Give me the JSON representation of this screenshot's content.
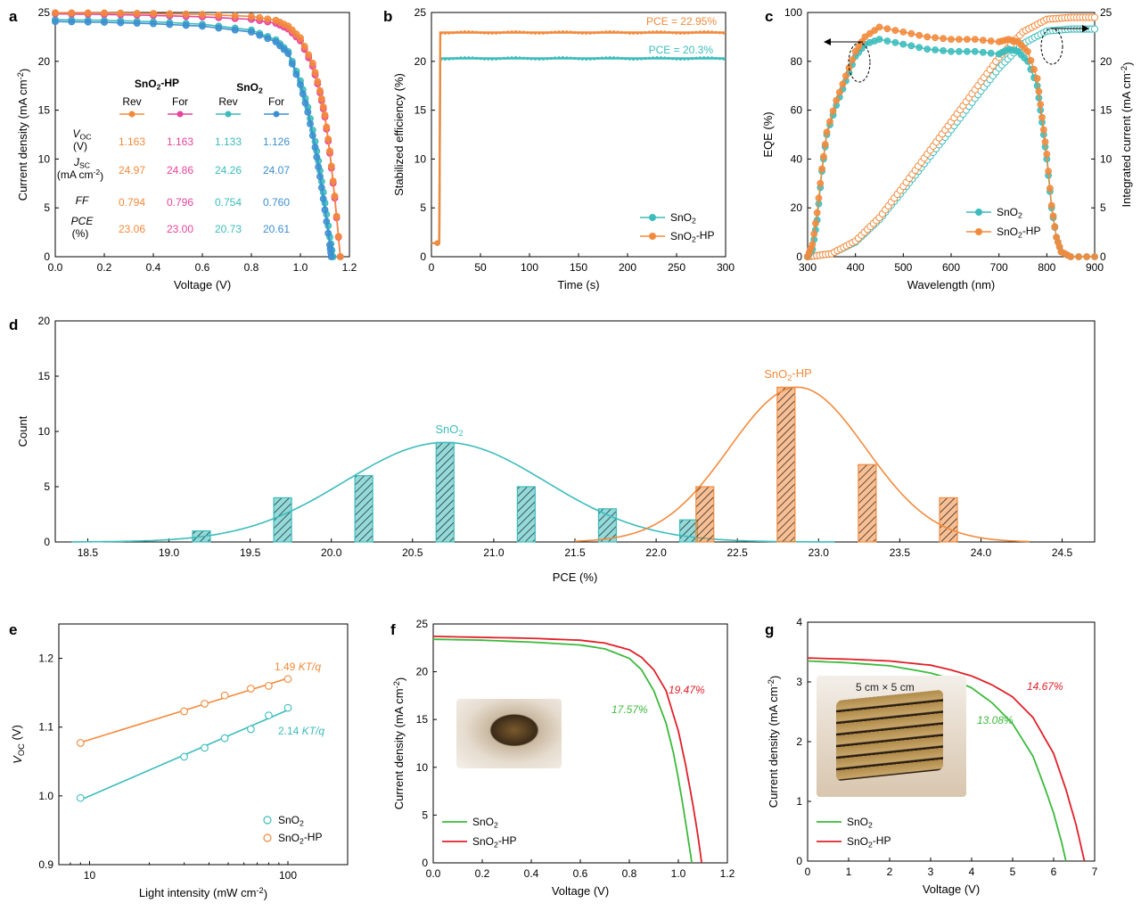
{
  "colors": {
    "sno2": "#3cbcbc",
    "hp": "#f28a3c",
    "hp_for": "#e6459a",
    "sno2_for": "#3d8fd1",
    "green": "#3cba3c",
    "red": "#e0202a"
  },
  "panel_labels": [
    "a",
    "b",
    "c",
    "d",
    "e",
    "f",
    "g"
  ],
  "inset_table": {
    "groups": [
      "SnO2-HP",
      "SnO2"
    ],
    "scan_labels": [
      "Rev",
      "For",
      "Rev",
      "For"
    ],
    "row_labels": [
      {
        "name": "VOC",
        "unit": "(V)"
      },
      {
        "name": "JSC",
        "unit": "(mA cm-2)"
      },
      {
        "name": "FF",
        "unit": ""
      },
      {
        "name": "PCE",
        "unit": "(%)"
      }
    ],
    "rows": [
      [
        "1.163",
        "1.163",
        "1.133",
        "1.126"
      ],
      [
        "24.97",
        "24.86",
        "24.26",
        "24.07"
      ],
      [
        "0.794",
        "0.796",
        "0.754",
        "0.760"
      ],
      [
        "23.06",
        "23.00",
        "20.73",
        "20.61"
      ]
    ]
  },
  "photo_labels": {
    "g": "5 cm × 5 cm"
  },
  "chart_data": [
    {
      "panel": "a",
      "type": "line",
      "xlabel": "Voltage (V)",
      "ylabel": "Current density (mA cm-2)",
      "xlim": [
        0,
        1.2
      ],
      "ylim": [
        0,
        25
      ],
      "xticks": [
        "0.0",
        "0.2",
        "0.4",
        "0.6",
        "0.8",
        "1.0",
        "1.2"
      ],
      "yticks": [
        "0",
        "5",
        "10",
        "15",
        "20",
        "25"
      ],
      "series": [
        {
          "name": "SnO2-HP Rev",
          "x": [
            0,
            0.2,
            0.4,
            0.6,
            0.8,
            0.9,
            0.95,
            1.0,
            1.05,
            1.08,
            1.1,
            1.12,
            1.14,
            1.163
          ],
          "y": [
            24.97,
            24.95,
            24.9,
            24.8,
            24.6,
            24.2,
            23.6,
            22.4,
            19.8,
            17.0,
            14.5,
            10.8,
            6.2,
            0
          ]
        },
        {
          "name": "SnO2-HP For",
          "x": [
            0,
            0.2,
            0.4,
            0.6,
            0.8,
            0.9,
            0.95,
            1.0,
            1.05,
            1.08,
            1.1,
            1.12,
            1.14,
            1.163
          ],
          "y": [
            24.86,
            24.8,
            24.7,
            24.55,
            24.3,
            23.9,
            23.3,
            22.1,
            19.5,
            16.8,
            14.3,
            10.6,
            6.0,
            0
          ]
        },
        {
          "name": "SnO2 Rev",
          "x": [
            0,
            0.2,
            0.4,
            0.6,
            0.8,
            0.9,
            0.95,
            1.0,
            1.03,
            1.06,
            1.08,
            1.1,
            1.12,
            1.133
          ],
          "y": [
            24.26,
            24.2,
            24.05,
            23.8,
            23.2,
            22.2,
            21.0,
            18.0,
            15.3,
            11.8,
            8.8,
            5.5,
            2.0,
            0
          ]
        },
        {
          "name": "SnO2 For",
          "x": [
            0,
            0.2,
            0.4,
            0.6,
            0.8,
            0.9,
            0.95,
            1.0,
            1.03,
            1.06,
            1.08,
            1.1,
            1.12,
            1.126
          ],
          "y": [
            24.07,
            24.0,
            23.85,
            23.6,
            23.0,
            22.0,
            20.8,
            17.6,
            14.8,
            11.2,
            8.2,
            4.8,
            1.2,
            0
          ]
        }
      ]
    },
    {
      "panel": "b",
      "type": "line",
      "xlabel": "Time (s)",
      "ylabel": "Stabilized efficiency (%)",
      "xlim": [
        0,
        300
      ],
      "ylim": [
        0,
        25
      ],
      "xticks": [
        "0",
        "50",
        "100",
        "150",
        "200",
        "250",
        "300"
      ],
      "yticks": [
        "0",
        "5",
        "10",
        "15",
        "20",
        "25"
      ],
      "annotations": [
        "PCE = 22.95%",
        "PCE = 20.3%"
      ],
      "legend": [
        "SnO2",
        "SnO2-HP"
      ],
      "series": [
        {
          "name": "SnO2",
          "x": [
            0,
            8,
            9,
            300
          ],
          "y": [
            1.4,
            1.4,
            20.3,
            20.3
          ]
        },
        {
          "name": "SnO2-HP",
          "x": [
            0,
            8,
            9,
            300
          ],
          "y": [
            1.4,
            1.4,
            22.95,
            22.95
          ]
        }
      ]
    },
    {
      "panel": "c",
      "type": "line",
      "xlabel": "Wavelength (nm)",
      "ylabel": "EQE (%)",
      "y2label": "Integrated current (mA cm-2)",
      "xlim": [
        300,
        900
      ],
      "ylim": [
        0,
        100
      ],
      "y2lim": [
        0,
        25
      ],
      "xticks": [
        "300",
        "400",
        "500",
        "600",
        "700",
        "800",
        "900"
      ],
      "yticks": [
        "0",
        "20",
        "40",
        "60",
        "80",
        "100"
      ],
      "y2ticks": [
        "0",
        "5",
        "10",
        "15",
        "20",
        "25"
      ],
      "legend": [
        "SnO2",
        "SnO2-HP"
      ],
      "series": [
        {
          "name": "SnO2",
          "axis": "EQE",
          "x": [
            300,
            310,
            320,
            330,
            340,
            360,
            380,
            400,
            420,
            450,
            500,
            550,
            600,
            650,
            700,
            720,
            740,
            760,
            780,
            790,
            800,
            810,
            820,
            830,
            850,
            900
          ],
          "y": [
            0,
            3,
            15,
            35,
            50,
            62,
            72,
            82,
            87,
            89,
            87,
            85,
            84,
            84,
            83,
            85,
            84,
            80,
            70,
            55,
            40,
            20,
            8,
            2,
            0,
            0
          ]
        },
        {
          "name": "SnO2-HP",
          "axis": "EQE",
          "x": [
            300,
            310,
            320,
            330,
            340,
            360,
            380,
            400,
            420,
            450,
            500,
            550,
            600,
            650,
            700,
            720,
            740,
            760,
            780,
            790,
            800,
            810,
            820,
            830,
            850,
            900
          ],
          "y": [
            0,
            5,
            18,
            36,
            51,
            64,
            74,
            84,
            90,
            94,
            92,
            90,
            89,
            89,
            88,
            89,
            88,
            84,
            73,
            57,
            42,
            21,
            8,
            2,
            0,
            0
          ]
        },
        {
          "name": "SnO2",
          "axis": "integrated",
          "x": [
            300,
            350,
            400,
            450,
            500,
            550,
            600,
            650,
            700,
            750,
            800,
            850,
            900
          ],
          "y": [
            0,
            0.3,
            1.5,
            3.8,
            6.8,
            9.9,
            13.0,
            16.2,
            19.3,
            21.8,
            23.1,
            23.3,
            23.3
          ]
        },
        {
          "name": "SnO2-HP",
          "axis": "integrated",
          "x": [
            300,
            350,
            400,
            450,
            500,
            550,
            600,
            650,
            700,
            750,
            800,
            850,
            900
          ],
          "y": [
            0,
            0.3,
            1.6,
            4.0,
            7.2,
            10.5,
            13.8,
            17.1,
            20.4,
            23.0,
            24.3,
            24.5,
            24.5
          ]
        }
      ]
    },
    {
      "panel": "d",
      "type": "bar",
      "xlabel": "PCE (%)",
      "ylabel": "Count",
      "xlim": [
        18.3,
        24.7
      ],
      "ylim": [
        0,
        20
      ],
      "xticks": [
        "18.5",
        "19.0",
        "19.5",
        "20.0",
        "20.5",
        "21.0",
        "21.5",
        "22.0",
        "22.5",
        "23.0",
        "23.5",
        "24.0",
        "24.5"
      ],
      "yticks": [
        "0",
        "5",
        "10",
        "15",
        "20"
      ],
      "series": [
        {
          "name": "SnO2",
          "x": [
            19.2,
            19.7,
            20.2,
            20.7,
            21.2,
            21.7,
            22.2
          ],
          "values": [
            1,
            4,
            6,
            9,
            5,
            3,
            2
          ],
          "fit": {
            "mean": 20.7,
            "sigma": 0.62,
            "peak": 9,
            "range": [
              18.4,
              23.1
            ]
          }
        },
        {
          "name": "SnO2-HP",
          "x": [
            22.3,
            22.8,
            23.3,
            23.8
          ],
          "values": [
            5,
            14,
            7,
            4
          ],
          "fit": {
            "mean": 22.87,
            "sigma": 0.42,
            "peak": 14,
            "range": [
              21.5,
              24.3
            ]
          }
        }
      ]
    },
    {
      "panel": "e",
      "type": "scatter",
      "xlabel": "Light intensity (mW cm-2)",
      "ylabel": "VOC (V)",
      "xscale": "log",
      "xlim": [
        7,
        200
      ],
      "ylim": [
        0.9,
        1.25
      ],
      "xticks": [
        "10",
        "100"
      ],
      "yticks": [
        "0.9",
        "1.0",
        "1.1",
        "1.2"
      ],
      "annotations": [
        "1.49 KT/q",
        "2.14 KT/q"
      ],
      "legend": [
        "SnO2",
        "SnO2-HP"
      ],
      "series": [
        {
          "name": "SnO2",
          "x": [
            9,
            30,
            38,
            48,
            65,
            80,
            100
          ],
          "y": [
            0.997,
            1.057,
            1.07,
            1.084,
            1.097,
            1.117,
            1.128
          ]
        },
        {
          "name": "SnO2-HP",
          "x": [
            9,
            30,
            38,
            48,
            65,
            80,
            100
          ],
          "y": [
            1.077,
            1.123,
            1.134,
            1.146,
            1.156,
            1.16,
            1.17
          ]
        }
      ]
    },
    {
      "panel": "f",
      "type": "line",
      "xlabel": "Voltage (V)",
      "ylabel": "Current density (mA cm-2)",
      "xlim": [
        0,
        1.2
      ],
      "ylim": [
        0,
        25
      ],
      "xticks": [
        "0.0",
        "0.2",
        "0.4",
        "0.6",
        "0.8",
        "1.0",
        "1.2"
      ],
      "yticks": [
        "0",
        "5",
        "10",
        "15",
        "20",
        "25"
      ],
      "annotations": [
        "17.57%",
        "19.47%"
      ],
      "legend": [
        "SnO2",
        "SnO2-HP"
      ],
      "series": [
        {
          "name": "SnO2",
          "x": [
            0,
            0.2,
            0.4,
            0.6,
            0.7,
            0.8,
            0.85,
            0.9,
            0.95,
            0.98,
            1.0,
            1.02,
            1.04,
            1.055
          ],
          "y": [
            23.4,
            23.3,
            23.1,
            22.8,
            22.4,
            21.4,
            20.2,
            18.0,
            14.6,
            11.5,
            8.8,
            5.8,
            2.5,
            0
          ]
        },
        {
          "name": "SnO2-HP",
          "x": [
            0,
            0.2,
            0.4,
            0.6,
            0.7,
            0.8,
            0.85,
            0.9,
            0.95,
            1.0,
            1.03,
            1.06,
            1.08,
            1.095
          ],
          "y": [
            23.7,
            23.6,
            23.5,
            23.3,
            23.0,
            22.3,
            21.5,
            20.2,
            18.0,
            13.8,
            10.2,
            6.0,
            2.8,
            0
          ]
        }
      ]
    },
    {
      "panel": "g",
      "type": "line",
      "xlabel": "Voltage (V)",
      "ylabel": "Current density (mA cm-2)",
      "xlim": [
        0,
        7
      ],
      "ylim": [
        0,
        4
      ],
      "xticks": [
        "0",
        "1",
        "2",
        "3",
        "4",
        "5",
        "6",
        "7"
      ],
      "yticks": [
        "0",
        "1",
        "2",
        "3",
        "4"
      ],
      "annotations": [
        "13.08%",
        "14.67%"
      ],
      "legend": [
        "SnO2",
        "SnO2-HP"
      ],
      "series": [
        {
          "name": "SnO2",
          "x": [
            0,
            1,
            2,
            3,
            3.5,
            4,
            4.5,
            5,
            5.5,
            5.8,
            6.0,
            6.2,
            6.3
          ],
          "y": [
            3.35,
            3.32,
            3.27,
            3.15,
            3.05,
            2.9,
            2.65,
            2.3,
            1.75,
            1.2,
            0.8,
            0.3,
            0
          ]
        },
        {
          "name": "SnO2-HP",
          "x": [
            0,
            1,
            2,
            3,
            3.5,
            4,
            4.5,
            5,
            5.5,
            6.0,
            6.3,
            6.55,
            6.75
          ],
          "y": [
            3.4,
            3.38,
            3.35,
            3.28,
            3.2,
            3.1,
            2.95,
            2.75,
            2.4,
            1.8,
            1.2,
            0.6,
            0
          ]
        }
      ]
    }
  ]
}
